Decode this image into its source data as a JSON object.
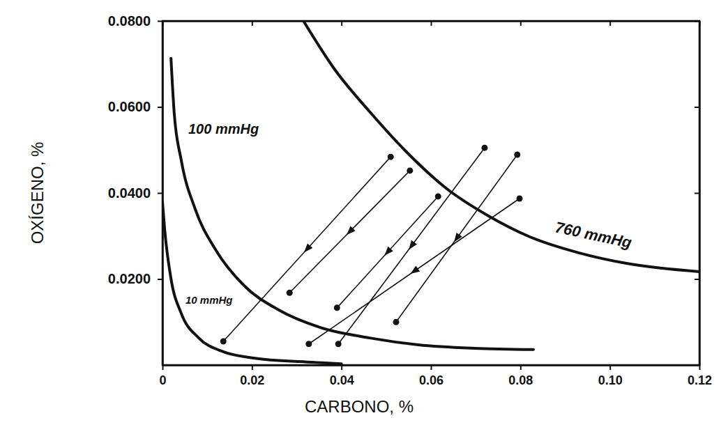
{
  "chart_data": {
    "type": "line",
    "x_label": "CARBONO, %",
    "y_label": "OXÍGENO, %",
    "xlim": [
      0,
      0.12
    ],
    "ylim": [
      0,
      0.08
    ],
    "xticks": [
      0,
      0.02,
      0.04,
      0.06,
      0.08,
      {
        "value": 0.1,
        "label": "0.10"
      },
      0.12
    ],
    "yticks": [
      {
        "value": 0.02,
        "label": "0.0200"
      },
      {
        "value": 0.04,
        "label": "0.0400"
      },
      {
        "value": 0.06,
        "label": "0.0600"
      },
      {
        "value": 0.08,
        "label": "0.0800"
      }
    ],
    "grid": false,
    "series": [
      {
        "name": "760 mmHg",
        "type": "line",
        "color": "#111111",
        "x": [
          0.0315,
          0.0385,
          0.0463,
          0.0541,
          0.0634,
          0.0728,
          0.0821,
          0.093,
          0.1039,
          0.12
        ],
        "values": [
          0.08,
          0.0687,
          0.0589,
          0.05,
          0.0411,
          0.0347,
          0.0298,
          0.0261,
          0.0236,
          0.0217
        ]
      },
      {
        "name": "100 mmHg",
        "type": "line",
        "color": "#111111",
        "x": [
          0.0019,
          0.0026,
          0.0042,
          0.0073,
          0.012,
          0.0182,
          0.026,
          0.0354,
          0.0463,
          0.0572,
          0.0697,
          0.0829
        ],
        "values": [
          0.0713,
          0.0589,
          0.0476,
          0.0363,
          0.0266,
          0.0185,
          0.0128,
          0.0087,
          0.0063,
          0.0047,
          0.0039,
          0.0036
        ]
      },
      {
        "name": "10 mmHg",
        "type": "line",
        "color": "#111111",
        "x": [
          0,
          0.0005,
          0.0019,
          0.0042,
          0.0081,
          0.0136,
          0.0213,
          0.0307,
          0.04
        ],
        "values": [
          0.0379,
          0.0314,
          0.0201,
          0.012,
          0.0063,
          0.0031,
          0.0015,
          0.0008,
          0.0003
        ]
      },
      {
        "type": "arrow",
        "marker": "circle",
        "color": "#111111",
        "x": [
          0.051,
          0.0136
        ],
        "values": [
          0.0484,
          0.0055
        ]
      },
      {
        "type": "arrow",
        "marker": "circle",
        "color": "#111111",
        "x": [
          0.0553,
          0.0284
        ],
        "values": [
          0.0452,
          0.0168
        ]
      },
      {
        "type": "arrow",
        "marker": "circle",
        "color": "#111111",
        "x": [
          0.0616,
          0.039
        ],
        "values": [
          0.0392,
          0.0133
        ]
      },
      {
        "type": "arrow",
        "marker": "circle",
        "color": "#111111",
        "x": [
          0.072,
          0.0393
        ],
        "values": [
          0.0505,
          0.0049
        ]
      },
      {
        "type": "arrow",
        "marker": "circle",
        "color": "#111111",
        "x": [
          0.0793,
          0.0522
        ],
        "values": [
          0.0489,
          0.01
        ]
      },
      {
        "type": "arrow",
        "marker": "circle",
        "color": "#111111",
        "x": [
          0.0798,
          0.0327
        ],
        "values": [
          0.0387,
          0.0049
        ]
      }
    ]
  }
}
